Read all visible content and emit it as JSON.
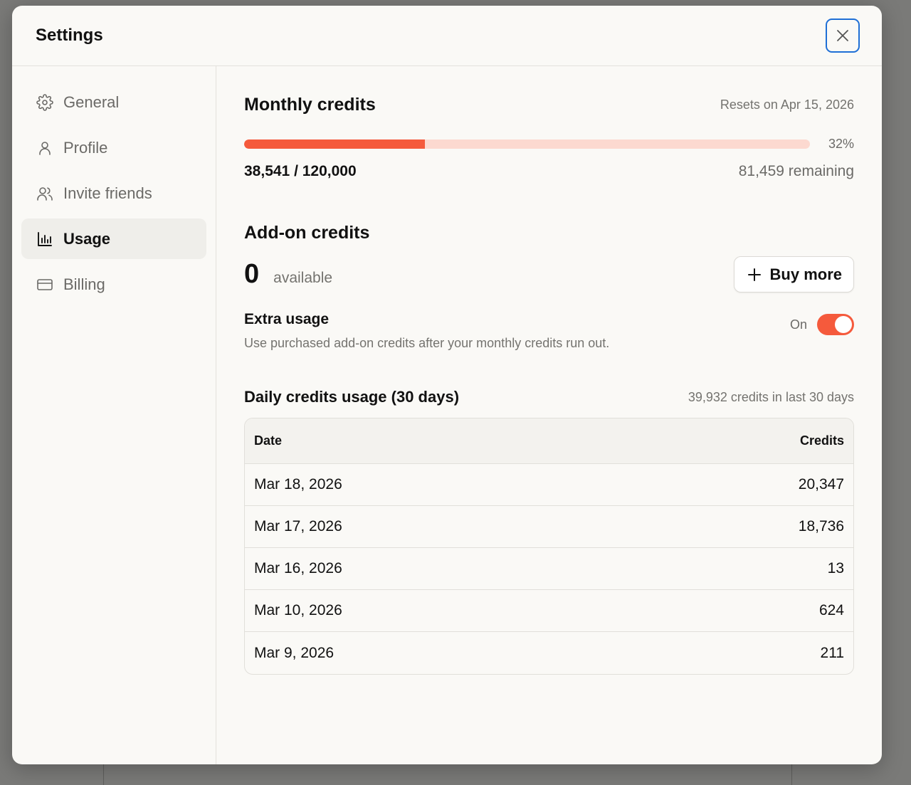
{
  "dialog": {
    "title": "Settings",
    "close_icon": "close-icon"
  },
  "sidebar": {
    "items": [
      {
        "label": "General",
        "icon": "gear-icon",
        "active": false
      },
      {
        "label": "Profile",
        "icon": "user-icon",
        "active": false
      },
      {
        "label": "Invite friends",
        "icon": "users-icon",
        "active": false
      },
      {
        "label": "Usage",
        "icon": "bar-chart-icon",
        "active": true
      },
      {
        "label": "Billing",
        "icon": "credit-card-icon",
        "active": false
      }
    ]
  },
  "monthly": {
    "title": "Monthly credits",
    "resets": "Resets on Apr 15, 2026",
    "progress_fraction": 0.32,
    "percent_label": "32%",
    "used_label": "38,541 / 120,000",
    "remaining_label": "81,459 remaining"
  },
  "addon": {
    "title": "Add-on credits",
    "count": "0",
    "count_label": "available",
    "buy_label": "Buy more",
    "buy_icon": "plus-icon"
  },
  "extra_usage": {
    "title": "Extra usage",
    "description": "Use purchased add-on credits after your monthly credits run out.",
    "toggle_label": "On",
    "toggle_on": true
  },
  "daily": {
    "title": "Daily credits usage (30 days)",
    "summary": "39,932 credits in last 30 days",
    "columns": [
      "Date",
      "Credits"
    ],
    "rows": [
      {
        "date": "Mar 18, 2026",
        "credits": "20,347"
      },
      {
        "date": "Mar 17, 2026",
        "credits": "18,736"
      },
      {
        "date": "Mar 16, 2026",
        "credits": "13"
      },
      {
        "date": "Mar 10, 2026",
        "credits": "624"
      },
      {
        "date": "Mar 9, 2026",
        "credits": "211"
      }
    ]
  },
  "colors": {
    "accent": "#f55a3c",
    "accent_light": "#fcd9d0",
    "focus": "#1f6fd6"
  }
}
